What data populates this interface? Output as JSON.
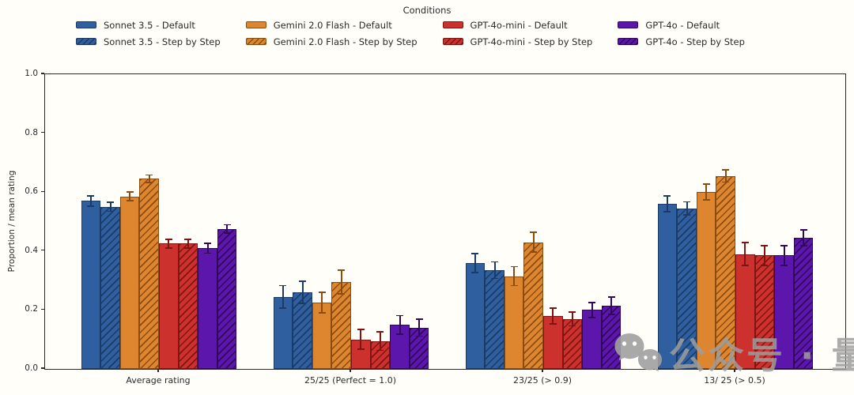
{
  "figure": {
    "watermark": {
      "text": "公众号 · 量子位",
      "icon": "wechat-icon",
      "color": "#9e9e9e"
    }
  },
  "legend": {
    "title": "Conditions",
    "position": "top",
    "columns": 4,
    "rows": 2
  },
  "chart_data": {
    "type": "bar",
    "title": "",
    "xlabel": "",
    "ylabel": "Proportion / mean rating",
    "ylim": [
      0.0,
      1.0
    ],
    "yticks": [
      0.0,
      0.2,
      0.4,
      0.6,
      0.8,
      1.0
    ],
    "ytick_labels": [
      "0.0",
      "0.2",
      "0.4",
      "0.6",
      "0.8",
      "1.0"
    ],
    "grid": false,
    "error_bars": true,
    "legend_position": "top",
    "categories": [
      "Average rating",
      "25/25 (Perfect = 1.0)",
      "23/25 (> 0.9)",
      "13/ 25 (> 0.5)"
    ],
    "series": [
      {
        "name": "Sonnet 3.5 - Default",
        "color": "#2f5f9e",
        "dark": "#1b3a66",
        "hatch": false,
        "values": [
          0.57,
          0.245,
          0.36,
          0.56
        ],
        "errors": [
          0.018,
          0.038,
          0.032,
          0.027
        ]
      },
      {
        "name": "Sonnet 3.5 - Step by Step",
        "color": "#2f5f9e",
        "dark": "#1b3a66",
        "hatch": true,
        "values": [
          0.55,
          0.26,
          0.335,
          0.545
        ],
        "errors": [
          0.015,
          0.037,
          0.028,
          0.022
        ]
      },
      {
        "name": "Gemini 2.0 Flash - Default",
        "color": "#de862f",
        "dark": "#8a4d0f",
        "hatch": false,
        "values": [
          0.585,
          0.225,
          0.315,
          0.6
        ],
        "errors": [
          0.015,
          0.035,
          0.032,
          0.027
        ]
      },
      {
        "name": "Gemini 2.0 Flash - Step by Step",
        "color": "#de862f",
        "dark": "#8a4d0f",
        "hatch": true,
        "values": [
          0.645,
          0.295,
          0.43,
          0.655
        ],
        "errors": [
          0.013,
          0.04,
          0.033,
          0.021
        ]
      },
      {
        "name": "GPT-4o-mini - Default",
        "color": "#cd312e",
        "dark": "#7e1513",
        "hatch": false,
        "values": [
          0.425,
          0.1,
          0.18,
          0.39
        ],
        "errors": [
          0.015,
          0.034,
          0.027,
          0.038
        ]
      },
      {
        "name": "GPT-4o-mini - Step by Step",
        "color": "#cd312e",
        "dark": "#7e1513",
        "hatch": true,
        "values": [
          0.425,
          0.095,
          0.17,
          0.385
        ],
        "errors": [
          0.014,
          0.032,
          0.024,
          0.033
        ]
      },
      {
        "name": "GPT-4o - Default",
        "color": "#5c16ac",
        "dark": "#30085c",
        "hatch": false,
        "values": [
          0.41,
          0.15,
          0.2,
          0.385
        ],
        "errors": [
          0.017,
          0.031,
          0.026,
          0.033
        ]
      },
      {
        "name": "GPT-4o - Step by Step",
        "color": "#5c16ac",
        "dark": "#30085c",
        "hatch": true,
        "values": [
          0.475,
          0.14,
          0.215,
          0.445
        ],
        "errors": [
          0.014,
          0.029,
          0.029,
          0.027
        ]
      }
    ]
  }
}
